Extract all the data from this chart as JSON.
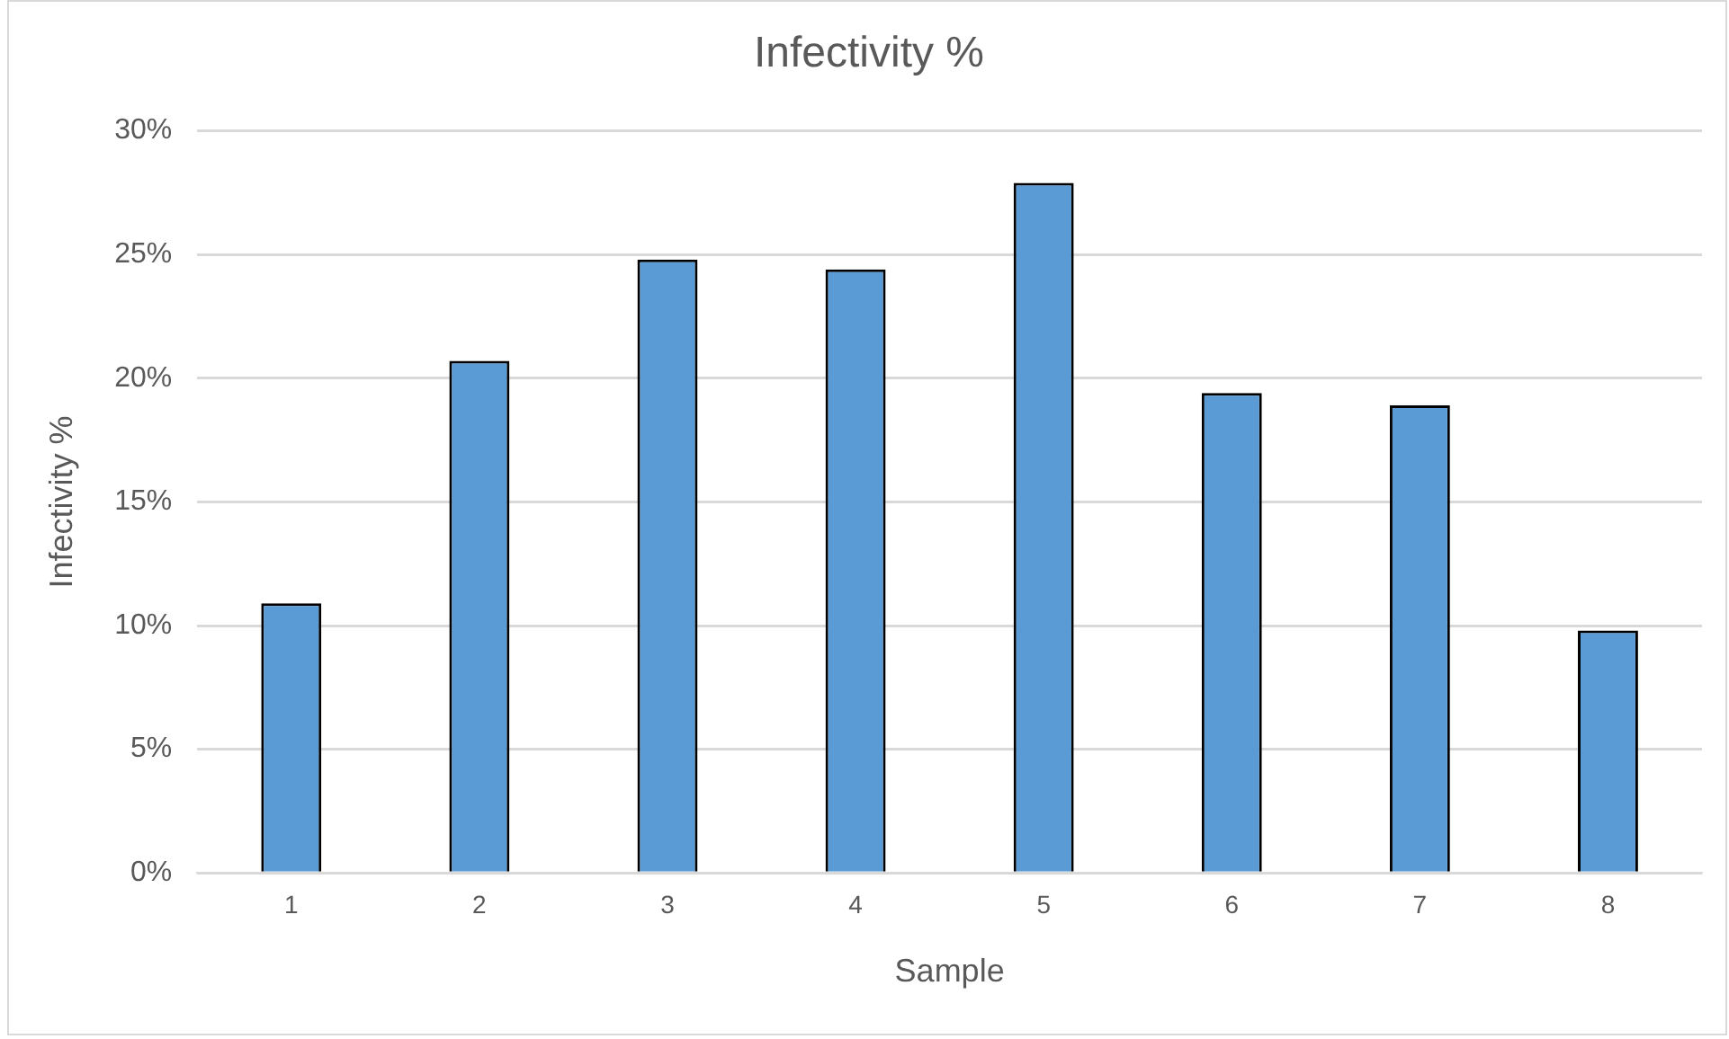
{
  "chart_data": {
    "type": "bar",
    "title": "Infectivity %",
    "xlabel": "Sample",
    "ylabel": "Infectivity %",
    "categories": [
      "1",
      "2",
      "3",
      "4",
      "5",
      "6",
      "7",
      "8"
    ],
    "values": [
      10.9,
      20.7,
      24.8,
      24.4,
      27.9,
      19.4,
      18.9,
      9.8
    ],
    "color": "#5b9bd5",
    "ylim": [
      0,
      30
    ],
    "yticks": [
      {
        "value": 0,
        "label": "0%"
      },
      {
        "value": 5,
        "label": "5%"
      },
      {
        "value": 10,
        "label": "10%"
      },
      {
        "value": 15,
        "label": "15%"
      },
      {
        "value": 20,
        "label": "20%"
      },
      {
        "value": 25,
        "label": "25%"
      },
      {
        "value": 30,
        "label": "30%"
      }
    ],
    "grid": "y",
    "legend": false
  }
}
